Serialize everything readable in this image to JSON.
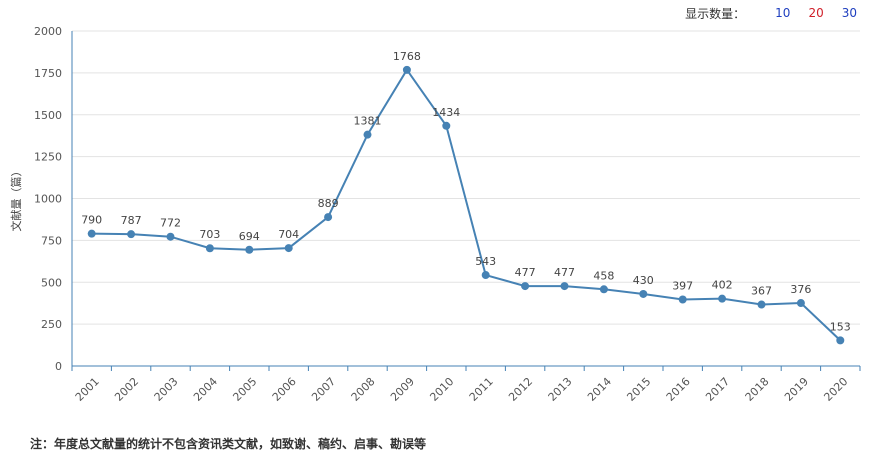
{
  "display_control": {
    "label": "显示数量：",
    "options": [
      {
        "text": "10",
        "color": "#1f3fbf"
      },
      {
        "text": "20",
        "color": "#d0202a"
      },
      {
        "text": "30",
        "color": "#1f3fbf"
      }
    ]
  },
  "chart_data": {
    "type": "line",
    "ylabel": "文献量（篇）",
    "x": [
      "2001",
      "2002",
      "2003",
      "2004",
      "2005",
      "2006",
      "2007",
      "2008",
      "2009",
      "2010",
      "2011",
      "2012",
      "2013",
      "2014",
      "2015",
      "2016",
      "2017",
      "2018",
      "2019",
      "2020"
    ],
    "series": [
      {
        "values": [
          790,
          787,
          772,
          703,
          694,
          704,
          889,
          1381,
          1768,
          1434,
          543,
          477,
          477,
          458,
          430,
          397,
          402,
          367,
          376,
          153
        ]
      }
    ],
    "yticks": [
      0,
      250,
      500,
      750,
      1000,
      1250,
      1500,
      1750,
      2000
    ],
    "ylim": [
      0,
      2000
    ],
    "grid": true,
    "line_color": "#4682b4"
  },
  "footnote": "注：年度总文献量的统计不包含资讯类文献，如致谢、稿约、启事、勘误等"
}
